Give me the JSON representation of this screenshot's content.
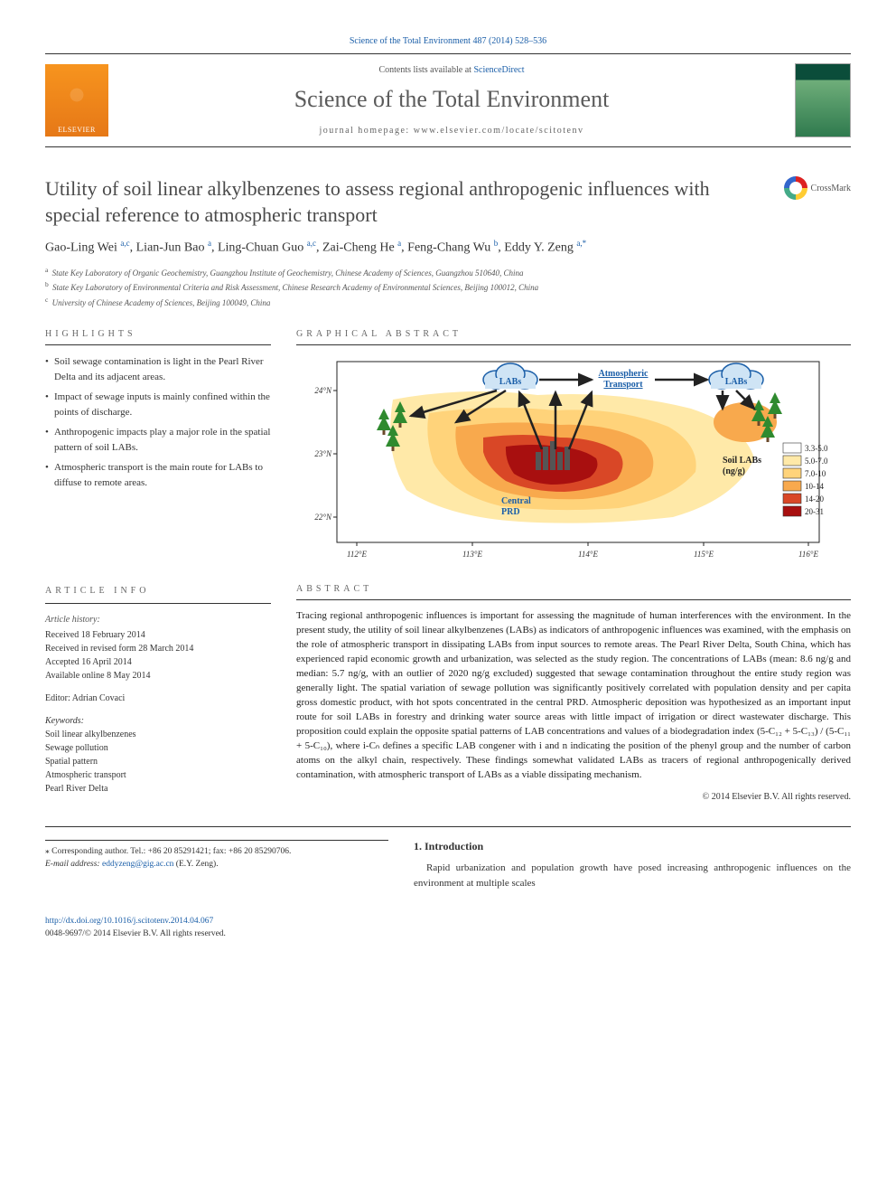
{
  "top_link": "Science of the Total Environment 487 (2014) 528–536",
  "header": {
    "contents_prefix": "Contents lists available at ",
    "contents_link": "ScienceDirect",
    "journal": "Science of the Total Environment",
    "homepage_prefix": "journal homepage: ",
    "homepage": "www.elsevier.com/locate/scitotenv",
    "publisher": "ELSEVIER"
  },
  "crossmark": "CrossMark",
  "title": "Utility of soil linear alkylbenzenes to assess regional anthropogenic influences with special reference to atmospheric transport",
  "authors_html": "Gao-Ling Wei <sup>a,c</sup>, Lian-Jun Bao <sup>a</sup>, Ling-Chuan Guo <sup>a,c</sup>, Zai-Cheng He <sup>a</sup>, Feng-Chang Wu <sup>b</sup>, Eddy Y. Zeng <sup>a,*</sup>",
  "affiliations": [
    {
      "sup": "a",
      "text": "State Key Laboratory of Organic Geochemistry, Guangzhou Institute of Geochemistry, Chinese Academy of Sciences, Guangzhou 510640, China"
    },
    {
      "sup": "b",
      "text": "State Key Laboratory of Environmental Criteria and Risk Assessment, Chinese Research Academy of Environmental Sciences, Beijing 100012, China"
    },
    {
      "sup": "c",
      "text": "University of Chinese Academy of Sciences, Beijing 100049, China"
    }
  ],
  "highlights": {
    "label": "HIGHLIGHTS",
    "items": [
      "Soil sewage contamination is light in the Pearl River Delta and its adjacent areas.",
      "Impact of sewage inputs is mainly confined within the points of discharge.",
      "Anthropogenic impacts play a major role in the spatial pattern of soil LABs.",
      "Atmospheric transport is the main route for LABs to diffuse to remote areas."
    ]
  },
  "graphical": {
    "label": "GRAPHICAL ABSTRACT",
    "cloud_left": "LABs",
    "cloud_mid": "Atmospheric Transport",
    "cloud_right": "LABs",
    "region_label": "Central PRD",
    "legend_title": "Soil LABs (ng/g)",
    "legend": [
      {
        "color": "#ffffff",
        "label": "3.3-5.0"
      },
      {
        "color": "#ffe9a8",
        "label": "5.0-7.0"
      },
      {
        "color": "#ffd37a",
        "label": "7.0-10"
      },
      {
        "color": "#f8a94d",
        "label": "10-14"
      },
      {
        "color": "#d94726",
        "label": "14-20"
      },
      {
        "color": "#a80f0f",
        "label": "20-31"
      }
    ],
    "axis": {
      "lat": [
        "24°N",
        "23°N",
        "22°N"
      ],
      "lon": [
        "112°E",
        "113°E",
        "114°E",
        "115°E",
        "116°E"
      ]
    },
    "colors": {
      "cloud_stroke": "#1a5ea8",
      "cloud_fill": "#cfe4f5",
      "arrow": "#222222",
      "trees": "#2f8a2f",
      "city": "#555555",
      "border": "#222222"
    }
  },
  "article_info": {
    "label": "ARTICLE INFO",
    "history_label": "Article history:",
    "history": [
      "Received 18 February 2014",
      "Received in revised form 28 March 2014",
      "Accepted 16 April 2014",
      "Available online 8 May 2014"
    ],
    "editor_label": "Editor: ",
    "editor": "Adrian Covaci",
    "keywords_label": "Keywords:",
    "keywords": [
      "Soil linear alkylbenzenes",
      "Sewage pollution",
      "Spatial pattern",
      "Atmospheric transport",
      "Pearl River Delta"
    ]
  },
  "abstract": {
    "label": "ABSTRACT",
    "text": "Tracing regional anthropogenic influences is important for assessing the magnitude of human interferences with the environment. In the present study, the utility of soil linear alkylbenzenes (LABs) as indicators of anthropogenic influences was examined, with the emphasis on the role of atmospheric transport in dissipating LABs from input sources to remote areas. The Pearl River Delta, South China, which has experienced rapid economic growth and urbanization, was selected as the study region. The concentrations of LABs (mean: 8.6 ng/g and median: 5.7 ng/g, with an outlier of 2020 ng/g excluded) suggested that sewage contamination throughout the entire study region was generally light. The spatial variation of sewage pollution was significantly positively correlated with population density and per capita gross domestic product, with hot spots concentrated in the central PRD. Atmospheric deposition was hypothesized as an important input route for soil LABs in forestry and drinking water source areas with little impact of irrigation or direct wastewater discharge. This proposition could explain the opposite spatial patterns of LAB concentrations and values of a biodegradation index (5-C₁₂ + 5-C₁₃) / (5-C₁₁ + 5-C₁₀), where i-Cₙ defines a specific LAB congener with i and n indicating the position of the phenyl group and the number of carbon atoms on the alkyl chain, respectively. These findings somewhat validated LABs as tracers of regional anthropogenically derived contamination, with atmospheric transport of LABs as a viable dissipating mechanism.",
    "copyright": "© 2014 Elsevier B.V. All rights reserved."
  },
  "intro": {
    "heading": "1. Introduction",
    "text": "Rapid urbanization and population growth have posed increasing anthropogenic influences on the environment at multiple scales"
  },
  "corresponding": {
    "star": "⁎",
    "line1": "Corresponding author. Tel.: +86 20 85291421; fax: +86 20 85290706.",
    "email_label": "E-mail address: ",
    "email": "eddyzeng@gig.ac.cn",
    "email_suffix": " (E.Y. Zeng)."
  },
  "footer": {
    "doi": "http://dx.doi.org/10.1016/j.scitotenv.2014.04.067",
    "issn_line": "0048-9697/© 2014 Elsevier B.V. All rights reserved."
  }
}
